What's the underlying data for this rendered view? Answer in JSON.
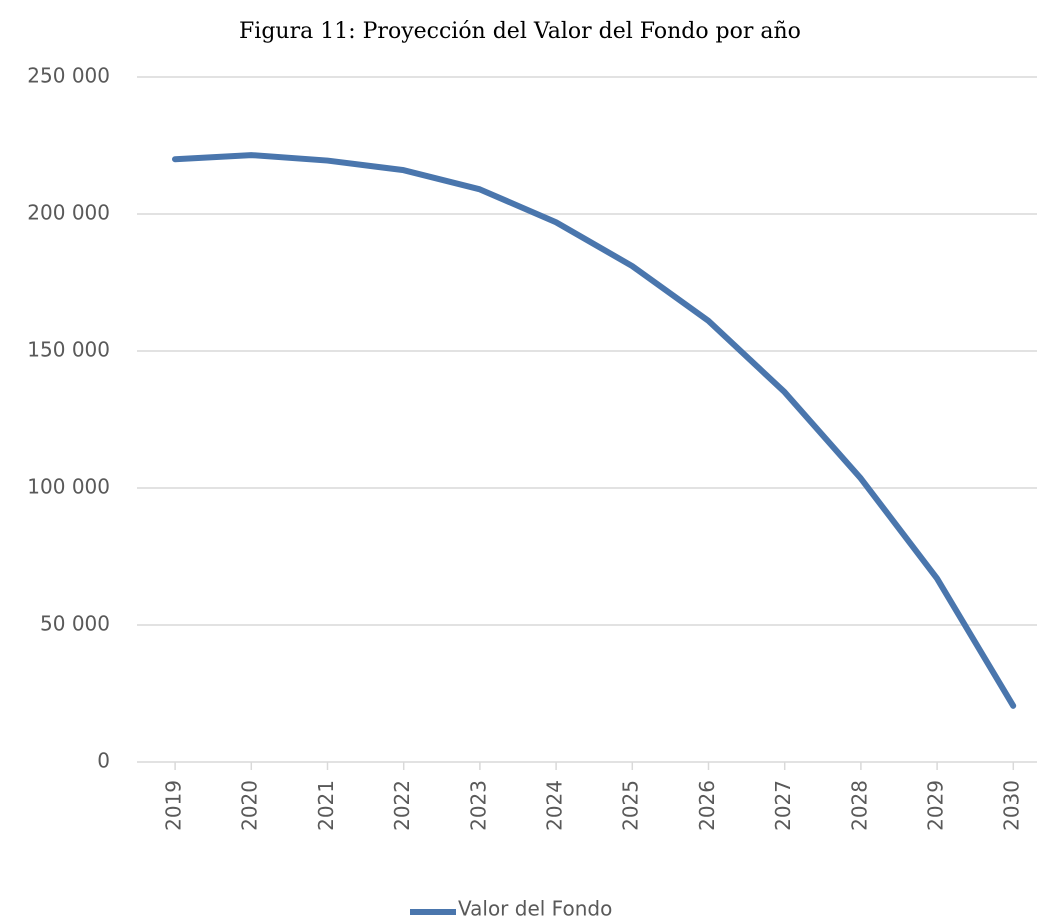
{
  "chart_data": {
    "type": "line",
    "title": "Figura 11: Proyección del Valor del Fondo por año",
    "categories": [
      "2019",
      "2020",
      "2021",
      "2022",
      "2023",
      "2024",
      "2025",
      "2026",
      "2027",
      "2028",
      "2029",
      "2030"
    ],
    "series": [
      {
        "name": "Valor del Fondo",
        "color": "#4a76ad",
        "values": [
          220000,
          221500,
          219500,
          216000,
          209000,
          197000,
          181000,
          161000,
          135000,
          103500,
          67000,
          20500
        ]
      }
    ],
    "ylim": [
      0,
      250000
    ],
    "yticks": [
      0,
      {
        "value": 50000,
        "label": "50 000"
      },
      {
        "value": 100000,
        "label": "100 000"
      },
      {
        "value": 150000,
        "label": "150 000"
      },
      {
        "value": 200000,
        "label": "200 000"
      },
      {
        "value": 250000,
        "label": "250 000"
      }
    ],
    "grid": true,
    "legend": "bottom"
  }
}
